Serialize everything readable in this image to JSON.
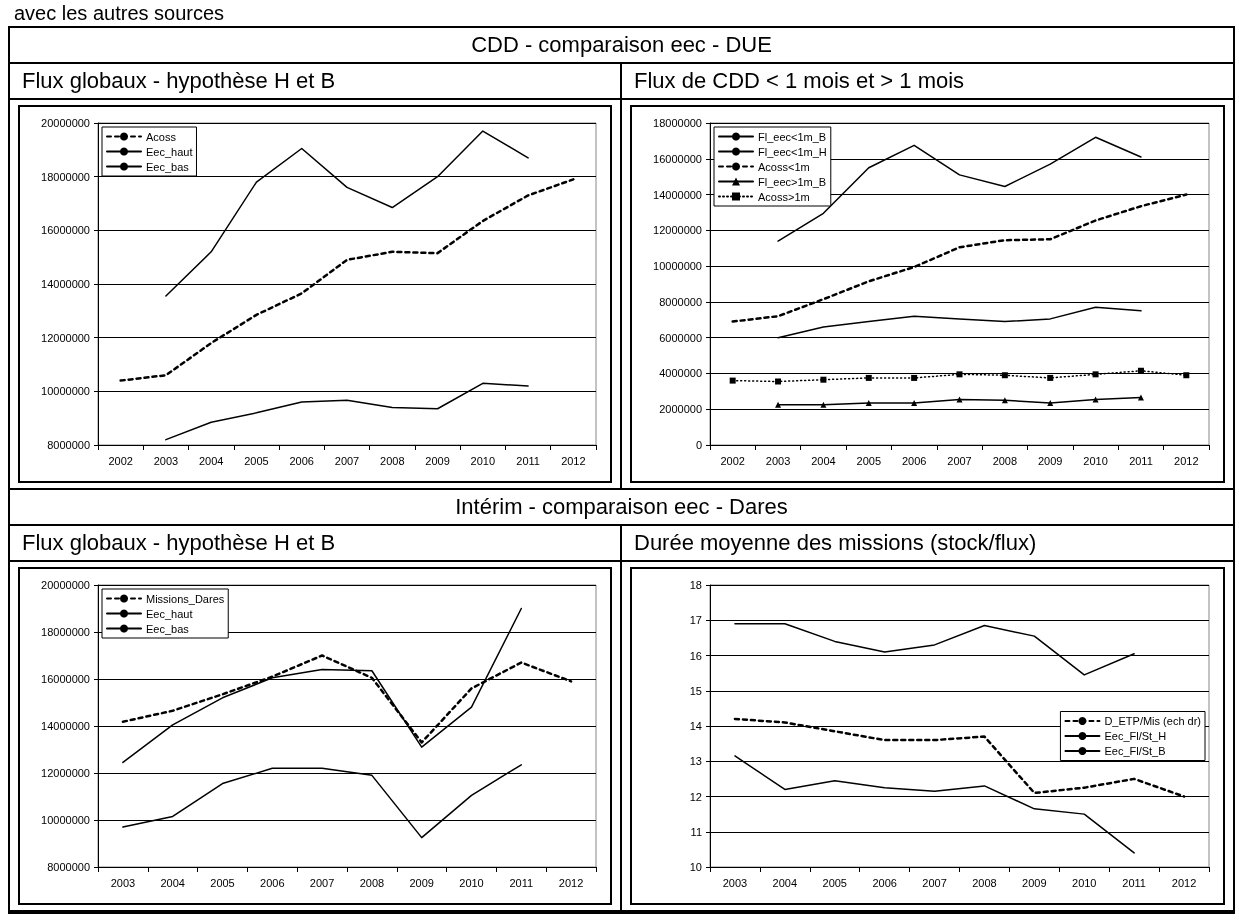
{
  "chart_data": [
    {
      "type": "line",
      "subtitle": "CDD - comparaison eec - DUE",
      "title": "Flux globaux - hypothèse H et B",
      "annotations": [
        "avec les autres sources"
      ],
      "categories": [
        "2002",
        "2003",
        "2004",
        "2005",
        "2006",
        "2007",
        "2008",
        "2009",
        "2010",
        "2011",
        "2012"
      ],
      "ylim": [
        8000000,
        20000000
      ],
      "yticks": [
        8000000,
        10000000,
        12000000,
        14000000,
        16000000,
        18000000,
        20000000
      ],
      "grid": "y",
      "legend": "top left",
      "series": [
        {
          "name": "Acoss",
          "color": "#000000",
          "line_style": "dashed",
          "values": [
            10400000,
            10600000,
            11800000,
            12850000,
            13650000,
            14900000,
            15200000,
            15150000,
            16350000,
            17300000,
            17900000
          ]
        },
        {
          "name": "Eec_haut",
          "color": "#000000",
          "line_style": "solid",
          "values": [
            null,
            13550000,
            15200000,
            17800000,
            19050000,
            17600000,
            16850000,
            18000000,
            19700000,
            18700000,
            null
          ]
        },
        {
          "name": "Eec_bas",
          "color": "#000000",
          "line_style": "solid",
          "values": [
            null,
            8200000,
            8850000,
            9200000,
            9600000,
            9670000,
            9400000,
            9350000,
            10300000,
            10200000,
            null
          ]
        }
      ]
    },
    {
      "type": "line",
      "title": "Flux de CDD < 1 mois et > 1 mois",
      "categories": [
        "2002",
        "2003",
        "2004",
        "2005",
        "2006",
        "2007",
        "2008",
        "2009",
        "2010",
        "2011",
        "2012"
      ],
      "ylim": [
        0,
        18000000
      ],
      "yticks": [
        0,
        2000000,
        4000000,
        6000000,
        8000000,
        10000000,
        12000000,
        14000000,
        16000000,
        18000000
      ],
      "grid": "y",
      "legend": "top left",
      "series": [
        {
          "name": "Fl_eec<1m_B",
          "color": "#000000",
          "line_style": "solid",
          "marker": "none",
          "values": [
            null,
            6000000,
            6600000,
            6900000,
            7200000,
            7050000,
            6900000,
            7050000,
            7700000,
            7500000,
            null
          ]
        },
        {
          "name": "Fl_eec<1m_H",
          "color": "#000000",
          "line_style": "solid",
          "marker": "none",
          "values": [
            null,
            11400000,
            12950000,
            15500000,
            16750000,
            15100000,
            14450000,
            15700000,
            17200000,
            16100000,
            null
          ]
        },
        {
          "name": "Acoss<1m",
          "color": "#000000",
          "line_style": "dashed",
          "marker": "none",
          "values": [
            6900000,
            7200000,
            8150000,
            9150000,
            9950000,
            11050000,
            11450000,
            11500000,
            12550000,
            13350000,
            14000000
          ]
        },
        {
          "name": "Fl_eec>1m_B",
          "color": "#000000",
          "line_style": "solid",
          "marker": "triangle",
          "values": [
            null,
            2250000,
            2250000,
            2350000,
            2350000,
            2550000,
            2500000,
            2350000,
            2550000,
            2650000,
            null
          ]
        },
        {
          "name": "Acoss>1m",
          "color": "#000000",
          "line_style": "dotted",
          "marker": "square",
          "values": [
            3600000,
            3550000,
            3650000,
            3750000,
            3750000,
            3950000,
            3900000,
            3750000,
            3950000,
            4150000,
            3900000
          ]
        }
      ]
    },
    {
      "type": "line",
      "subtitle": "Intérim - comparaison eec - Dares",
      "title": "Flux globaux - hypothèse H et B",
      "categories": [
        "2003",
        "2004",
        "2005",
        "2006",
        "2007",
        "2008",
        "2009",
        "2010",
        "2011",
        "2012"
      ],
      "ylim": [
        8000000,
        20000000
      ],
      "yticks": [
        8000000,
        10000000,
        12000000,
        14000000,
        16000000,
        18000000,
        20000000
      ],
      "grid": "y",
      "legend": "top left",
      "series": [
        {
          "name": "Missions_Dares",
          "color": "#000000",
          "line_style": "dashed",
          "values": [
            14180000,
            14650000,
            15350000,
            16100000,
            17000000,
            16050000,
            13300000,
            15600000,
            16700000,
            15900000
          ]
        },
        {
          "name": "Eec_haut",
          "color": "#000000",
          "line_style": "solid",
          "values": [
            12450000,
            14050000,
            15200000,
            16050000,
            16400000,
            16350000,
            13100000,
            14800000,
            19000000,
            null
          ]
        },
        {
          "name": "Eec_bas",
          "color": "#000000",
          "line_style": "solid",
          "values": [
            9700000,
            10150000,
            11550000,
            12200000,
            12200000,
            11900000,
            9250000,
            11050000,
            12350000,
            null
          ]
        }
      ]
    },
    {
      "type": "line",
      "title": "Durée moyenne des missions (stock/flux)",
      "categories": [
        "2003",
        "2004",
        "2005",
        "2006",
        "2007",
        "2008",
        "2009",
        "2010",
        "2011",
        "2012"
      ],
      "ylim": [
        10,
        18
      ],
      "yticks": [
        10,
        11,
        12,
        13,
        14,
        15,
        16,
        17,
        18
      ],
      "grid": "y",
      "legend": "right",
      "series": [
        {
          "name": "D_ETP/Mis (ech dr)",
          "color": "#000000",
          "line_style": "dashed",
          "values": [
            14.2,
            14.1,
            13.85,
            13.6,
            13.6,
            13.7,
            12.1,
            12.25,
            12.5,
            12.0
          ]
        },
        {
          "name": "Eec_Fl/St_H",
          "color": "#000000",
          "line_style": "solid",
          "values": [
            13.15,
            12.2,
            12.45,
            12.25,
            12.15,
            12.3,
            11.65,
            11.5,
            10.4,
            null
          ]
        },
        {
          "name": "Eec_Fl/St_B",
          "color": "#000000",
          "line_style": "solid",
          "values": [
            16.9,
            16.9,
            16.4,
            16.1,
            16.3,
            16.85,
            16.55,
            15.45,
            16.05,
            null
          ]
        }
      ]
    }
  ]
}
